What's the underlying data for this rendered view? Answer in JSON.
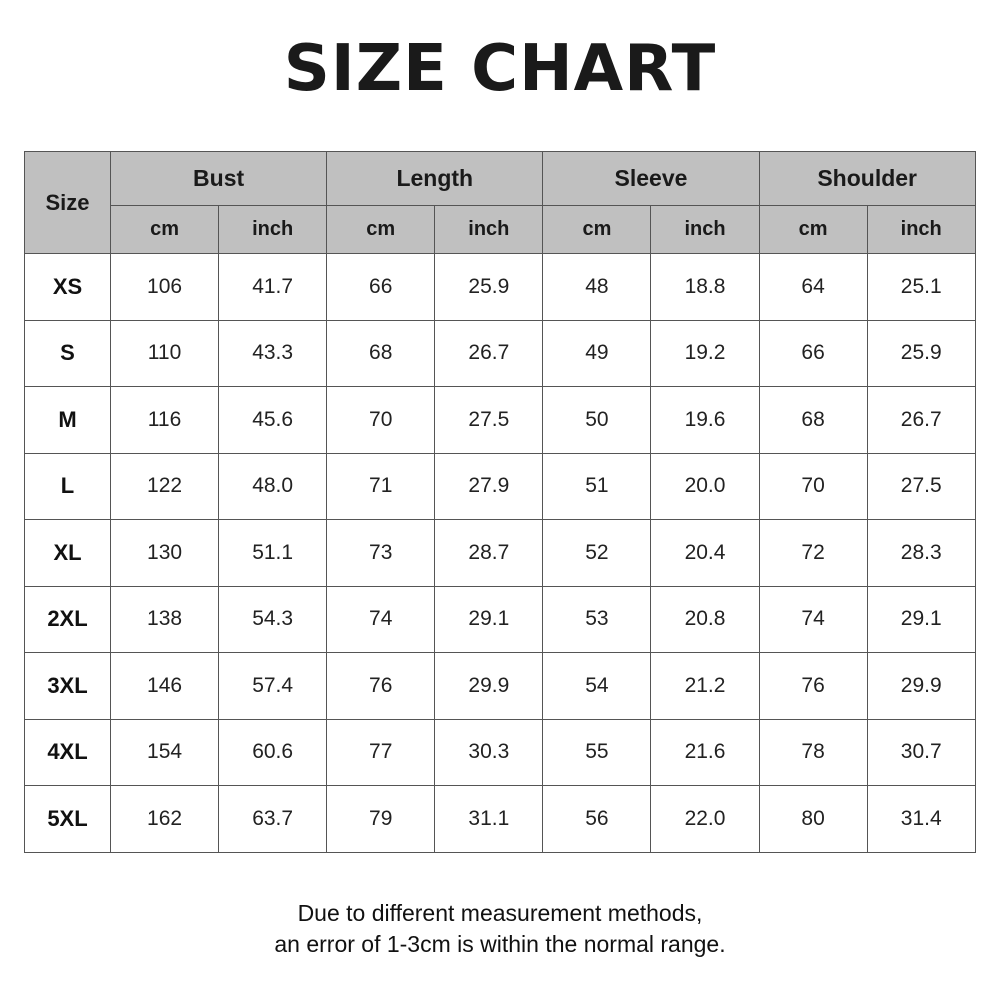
{
  "title": "SIZE CHART",
  "table": {
    "size_header": "Size",
    "groups": [
      "Bust",
      "Length",
      "Sleeve",
      "Shoulder"
    ],
    "units": [
      "cm",
      "inch"
    ],
    "rows": [
      {
        "size": "XS",
        "values": [
          "106",
          "41.7",
          "66",
          "25.9",
          "48",
          "18.8",
          "64",
          "25.1"
        ]
      },
      {
        "size": "S",
        "values": [
          "110",
          "43.3",
          "68",
          "26.7",
          "49",
          "19.2",
          "66",
          "25.9"
        ]
      },
      {
        "size": "M",
        "values": [
          "116",
          "45.6",
          "70",
          "27.5",
          "50",
          "19.6",
          "68",
          "26.7"
        ]
      },
      {
        "size": "L",
        "values": [
          "122",
          "48.0",
          "71",
          "27.9",
          "51",
          "20.0",
          "70",
          "27.5"
        ]
      },
      {
        "size": "XL",
        "values": [
          "130",
          "51.1",
          "73",
          "28.7",
          "52",
          "20.4",
          "72",
          "28.3"
        ]
      },
      {
        "size": "2XL",
        "values": [
          "138",
          "54.3",
          "74",
          "29.1",
          "53",
          "20.8",
          "74",
          "29.1"
        ]
      },
      {
        "size": "3XL",
        "values": [
          "146",
          "57.4",
          "76",
          "29.9",
          "54",
          "21.2",
          "76",
          "29.9"
        ]
      },
      {
        "size": "4XL",
        "values": [
          "154",
          "60.6",
          "77",
          "30.3",
          "55",
          "21.6",
          "78",
          "30.7"
        ]
      },
      {
        "size": "5XL",
        "values": [
          "162",
          "63.7",
          "79",
          "31.1",
          "56",
          "22.0",
          "80",
          "31.4"
        ]
      }
    ]
  },
  "note": {
    "line1": "Due to different measurement methods,",
    "line2": "an error of 1-3cm is within the normal range."
  },
  "colors": {
    "header_bg": "#c0c0c0",
    "border": "#555555"
  }
}
